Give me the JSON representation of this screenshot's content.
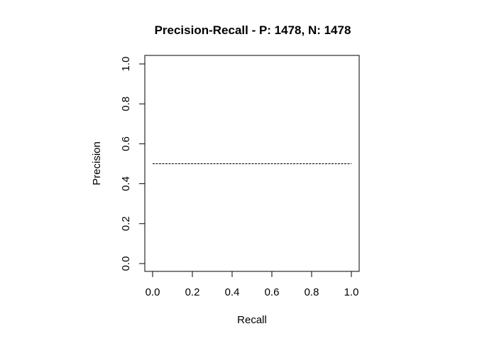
{
  "chart_data": {
    "type": "line",
    "title": "Precision-Recall - P: 1478, N: 1478",
    "xlabel": "Recall",
    "ylabel": "Precision",
    "xlim": [
      0.0,
      1.0
    ],
    "ylim": [
      0.0,
      1.0
    ],
    "x_ticks": [
      "0.0",
      "0.2",
      "0.4",
      "0.6",
      "0.8",
      "1.0"
    ],
    "y_ticks": [
      "0.0",
      "0.2",
      "0.4",
      "0.6",
      "0.8",
      "1.0"
    ],
    "grid": false,
    "series": [
      {
        "x": [
          0.0,
          1.0
        ],
        "y": [
          0.5,
          0.5
        ],
        "style": "dashed",
        "color": "#000000"
      }
    ]
  }
}
